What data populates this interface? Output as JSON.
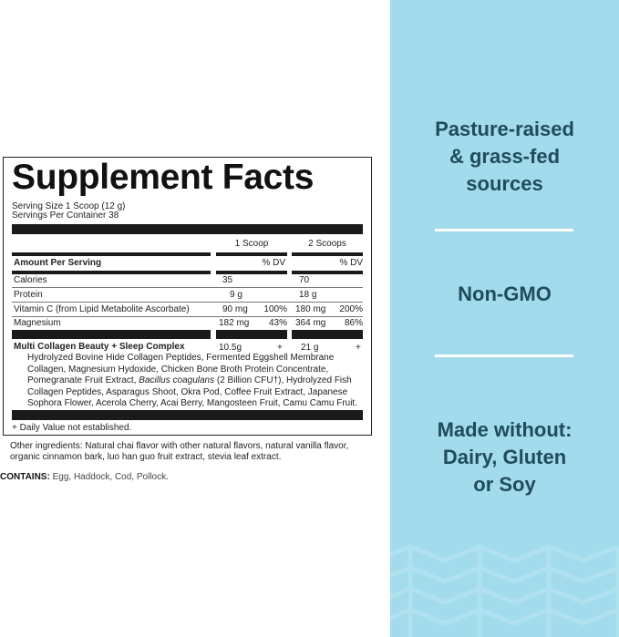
{
  "label": {
    "title": "Supplement Facts",
    "serving_size": "Serving Size 1 Scoop (12 g)",
    "servings_per_container": "Servings Per Container 38",
    "col1": "1 Scoop",
    "col2": "2 Scoops",
    "amount_per_serving": "Amount Per Serving",
    "dv": "% DV",
    "rows": [
      {
        "name": "Calories",
        "a1": "35",
        "d1": "",
        "a2": "70",
        "d2": ""
      },
      {
        "name": "Protein",
        "a1": "9 g",
        "d1": "",
        "a2": "18 g",
        "d2": ""
      },
      {
        "name": "Vitamin C (from Lipid Metabolite Ascorbate)",
        "a1": "90 mg",
        "d1": "100%",
        "a2": "180 mg",
        "d2": "200%"
      },
      {
        "name": "Magnesium",
        "a1": "182 mg",
        "d1": "43%",
        "a2": "364 mg",
        "d2": "86%"
      }
    ],
    "complex": {
      "name": "Multi Collagen Beauty + Sleep Complex",
      "a1": "10.5g",
      "d1": "+",
      "a2": "21 g",
      "d2": "+"
    },
    "ingredients_1": "Hydrolyzed Bovine Hide Collagen Peptides, Fermented Eggshell Membrane Collagen, Magnesium Hydoxide, Chicken Bone Broth Protein Concentrate, Pomegranate Fruit Extract, ",
    "ingredients_italic": "Bacillus coagulans",
    "ingredients_2": " (2 Billion CFU†), Hydrolyzed Fish Collagen Peptides, Asparagus Shoot, Okra Pod, Coffee Fruit Extract, Japanese Sophora Flower, Acerola Cherry, Acai Berry, Mangosteen Fruit, Camu Camu Fruit.",
    "footnote": "+ Daily Value not established."
  },
  "other_ingredients_1": "Other ingredients: Natural chai flavor with other natural flavors, natural vanilla flavor,",
  "other_ingredients_2": "organic cinnamon bark, luo han guo fruit extract, stevia leaf extract.",
  "contains_label": "CONTAINS:",
  "contains": " Egg, Haddock, Cod, Pollock.",
  "claims": [
    "Pasture-raised",
    "& grass-fed",
    "sources",
    "Non-GMO",
    "Made without:",
    "Dairy, Gluten",
    "or Soy"
  ],
  "colors": {
    "panel": "#a2dbec",
    "claim_text": "#1f4c5c"
  }
}
